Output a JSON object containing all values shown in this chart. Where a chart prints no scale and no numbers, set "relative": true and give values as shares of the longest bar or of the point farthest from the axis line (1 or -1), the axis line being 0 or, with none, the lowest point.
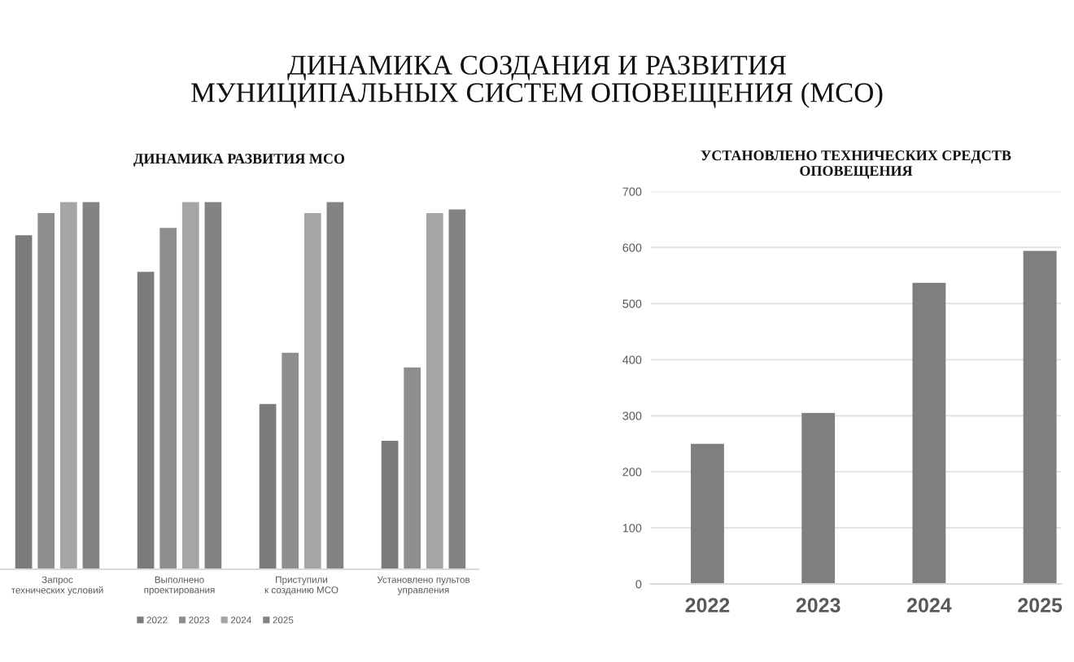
{
  "chart_data": [
    {
      "type": "other",
      "title": "ДИНАМИКА СОЗДАНИЯ И РАЗВИТИЯ\nМУНИЦИПАЛЬНЫХ СИСТЕМ ОПОВЕЩЕНИЯ (МСО)"
    },
    {
      "type": "bar",
      "title": "ДИНАМИКА РАЗВИТИЯ МСО",
      "relative": true,
      "categories": [
        "Запрос\nтехнических условий",
        "Выполнено\nпроектирования",
        "Приступили\nк созданию МСО",
        "Установлено пультов\nуправления"
      ],
      "series": [
        {
          "name": "2022",
          "color": "#7b7b7b",
          "values": [
            0.91,
            0.81,
            0.45,
            0.35
          ]
        },
        {
          "name": "2023",
          "color": "#8e8e8e",
          "values": [
            0.97,
            0.93,
            0.59,
            0.55
          ]
        },
        {
          "name": "2024",
          "color": "#a5a5a5",
          "values": [
            1,
            1,
            0.97,
            0.97
          ]
        },
        {
          "name": "2025",
          "color": "#838383",
          "values": [
            1,
            1,
            1,
            0.98
          ]
        }
      ],
      "legend": "bottom"
    },
    {
      "type": "bar",
      "title": "УСТАНОВЛЕНО ТЕХНИЧЕСКИХ СРЕДСТВ\nОПОВЕЩЕНИЯ",
      "categories": [
        "2022",
        "2023",
        "2024",
        "2025"
      ],
      "values": [
        250,
        305,
        537,
        594
      ],
      "color": "#7f7f7f",
      "ylim": [
        0,
        700
      ],
      "yticks": [
        0,
        100,
        200,
        300,
        400,
        500,
        600,
        700
      ],
      "grid": "y"
    }
  ]
}
